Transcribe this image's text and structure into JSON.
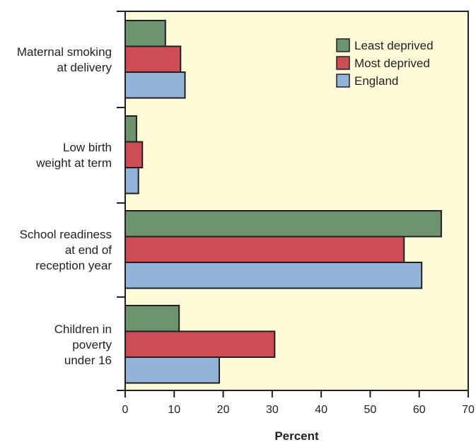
{
  "chart_data": {
    "type": "bar",
    "orientation": "horizontal",
    "categories": [
      [
        "Maternal smoking",
        "at delivery"
      ],
      [
        "Low birth",
        "weight at term"
      ],
      [
        "School readiness",
        "at end of",
        "reception year"
      ],
      [
        "Children in",
        "poverty",
        "under 16"
      ]
    ],
    "series": [
      {
        "name": "Least deprived",
        "color": "#6e9370",
        "values": [
          8.2,
          2.3,
          64.5,
          11.0
        ]
      },
      {
        "name": "Most deprived",
        "color": "#cc4d55",
        "values": [
          11.3,
          3.5,
          56.9,
          30.5
        ]
      },
      {
        "name": "England",
        "color": "#94b3d8",
        "values": [
          12.2,
          2.7,
          60.5,
          19.2
        ]
      }
    ],
    "xlabel": "Percent",
    "xlim": [
      0,
      70
    ],
    "xticks": [
      0,
      10,
      20,
      30,
      40,
      50,
      60,
      70
    ],
    "grid": false,
    "legend_position": "top-right",
    "background": "#fefbd8"
  }
}
